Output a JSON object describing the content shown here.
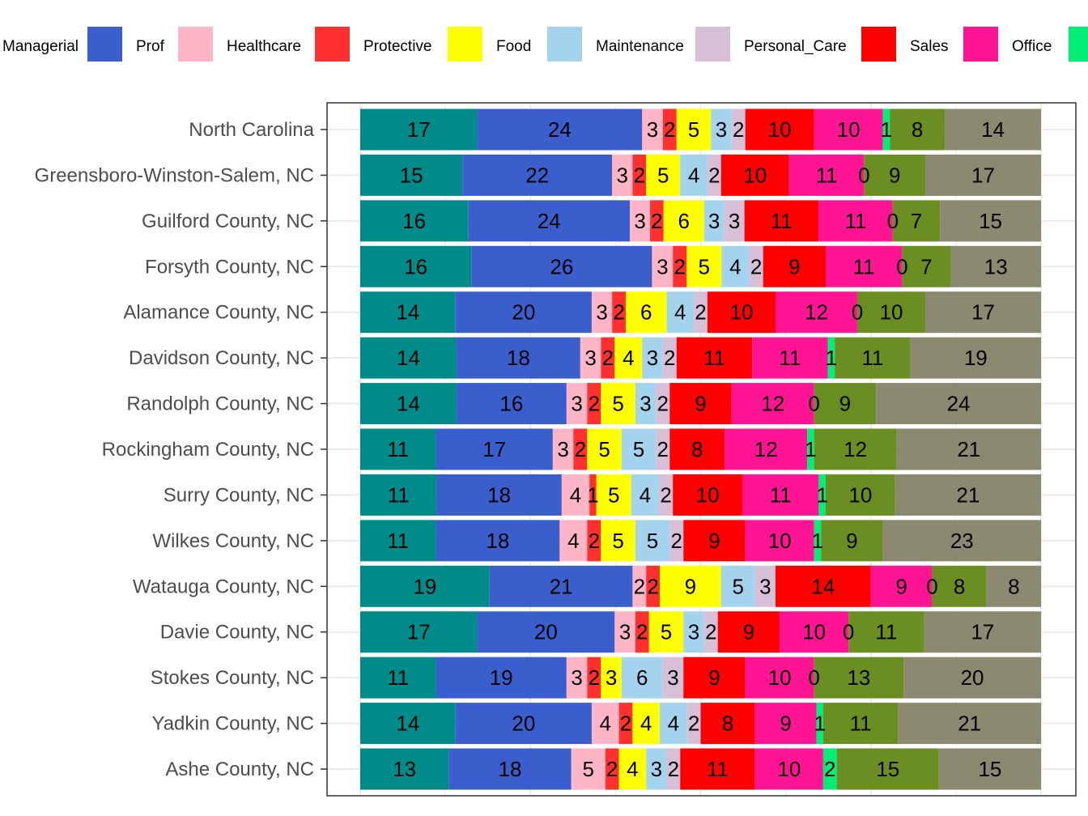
{
  "chart_data": {
    "type": "bar",
    "orientation": "horizontal",
    "stacked": true,
    "normalized_percent": true,
    "legend_position": "top",
    "grid": true,
    "xlim": [
      0,
      100
    ],
    "categories": [
      "North Carolina",
      "Greensboro-Winston-Salem, NC",
      "Guilford County, NC",
      "Forsyth County, NC",
      "Alamance County, NC",
      "Davidson County, NC",
      "Randolph County, NC",
      "Rockingham County, NC",
      "Surry County, NC",
      "Wilkes County, NC",
      "Watauga County, NC",
      "Davie County, NC",
      "Stokes County, NC",
      "Yadkin County, NC",
      "Ashe County, NC"
    ],
    "series": [
      {
        "name": "Managerial",
        "color": "#008B8B",
        "values": [
          17,
          15,
          16,
          16,
          14,
          14,
          14,
          11,
          11,
          11,
          19,
          17,
          11,
          14,
          13
        ]
      },
      {
        "name": "Prof",
        "color": "#3A5FCD",
        "values": [
          24,
          22,
          24,
          26,
          20,
          18,
          16,
          17,
          18,
          18,
          21,
          20,
          19,
          20,
          18
        ]
      },
      {
        "name": "Healthcare",
        "color": "#FFB5C5",
        "values": [
          3,
          3,
          3,
          3,
          3,
          3,
          3,
          3,
          4,
          4,
          2,
          3,
          3,
          4,
          5
        ]
      },
      {
        "name": "Protective",
        "color": "#FF3030",
        "values": [
          2,
          2,
          2,
          2,
          2,
          2,
          2,
          2,
          1,
          2,
          2,
          2,
          2,
          2,
          2
        ]
      },
      {
        "name": "Food",
        "color": "#FFFF00",
        "values": [
          5,
          5,
          6,
          5,
          6,
          4,
          5,
          5,
          5,
          5,
          9,
          5,
          3,
          4,
          4
        ]
      },
      {
        "name": "Maintenance",
        "color": "#A4D3EE",
        "values": [
          3,
          4,
          3,
          4,
          4,
          3,
          3,
          5,
          4,
          5,
          5,
          3,
          6,
          4,
          3
        ]
      },
      {
        "name": "Personal_Care",
        "color": "#D8BFD8",
        "values": [
          2,
          2,
          3,
          2,
          2,
          2,
          2,
          2,
          2,
          2,
          3,
          2,
          3,
          2,
          2
        ]
      },
      {
        "name": "Sales",
        "color": "#FF0000",
        "values": [
          10,
          10,
          11,
          9,
          10,
          11,
          9,
          8,
          10,
          9,
          14,
          9,
          9,
          8,
          11
        ]
      },
      {
        "name": "Office",
        "color": "#FF1493",
        "values": [
          10,
          11,
          11,
          11,
          12,
          11,
          12,
          12,
          11,
          10,
          9,
          10,
          10,
          9,
          10
        ]
      },
      {
        "name": "",
        "color": "#00EE76",
        "values": [
          1,
          0,
          0,
          0,
          0,
          1,
          0,
          1,
          1,
          1,
          0,
          0,
          0,
          1,
          2
        ]
      },
      {
        "name": "",
        "color": "#6B8E23",
        "values": [
          8,
          9,
          7,
          7,
          10,
          11,
          9,
          12,
          10,
          9,
          8,
          11,
          13,
          11,
          15
        ]
      },
      {
        "name": "",
        "color": "#8B8970",
        "values": [
          14,
          17,
          15,
          13,
          17,
          19,
          24,
          21,
          21,
          23,
          8,
          17,
          20,
          21,
          15
        ]
      }
    ]
  }
}
